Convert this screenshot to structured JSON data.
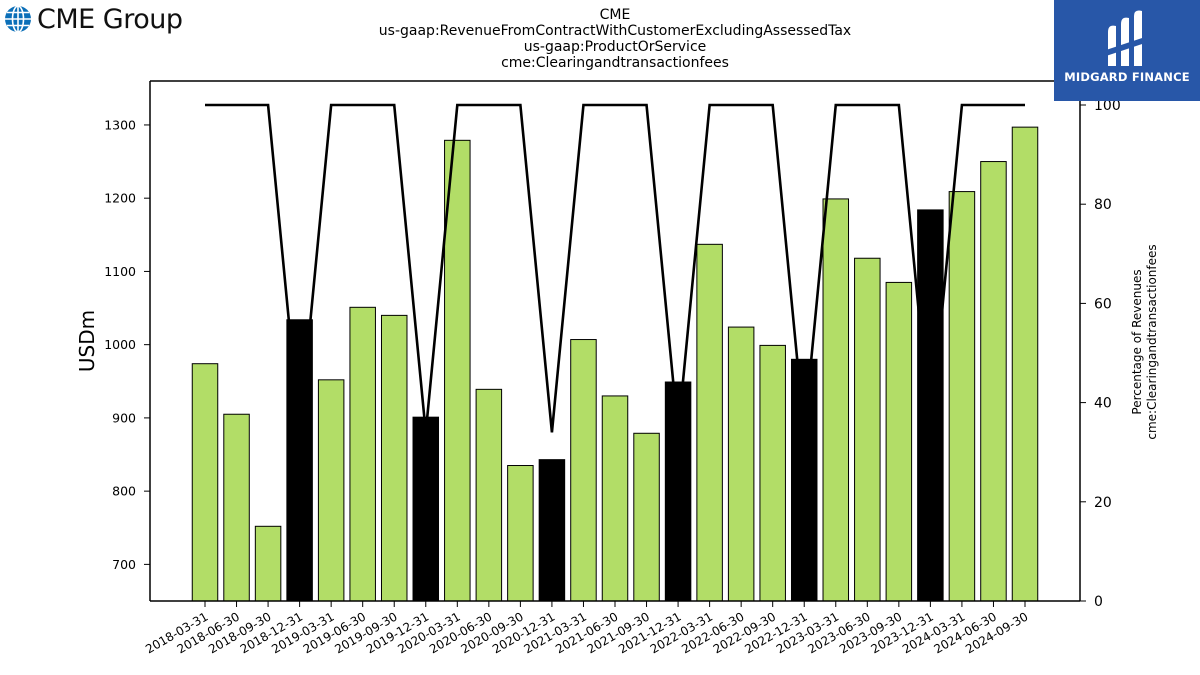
{
  "header": {
    "title_lines": [
      "CME",
      "us-gaap:RevenueFromContractWithCustomerExcludingAssessedTax",
      "us-gaap:ProductOrService",
      "cme:Clearingandtransactionfees"
    ],
    "left_logo_text": "CME Group",
    "right_logo_text": "MIDGARD FINANCE"
  },
  "colors": {
    "bar_normal": "#b2dd67",
    "bar_q4": "#000000",
    "line": "#000000",
    "logo_blue": "#2857a8",
    "globe_blue": "#0b6fb8"
  },
  "chart_data": {
    "type": "bar",
    "ylabel": "USDm",
    "y2label_lines": [
      "Percentage of Revenues",
      "cme:Clearingandtransactionfees"
    ],
    "ylim": [
      650,
      1360
    ],
    "y_ticks": [
      700,
      800,
      900,
      1000,
      1100,
      1200,
      1300
    ],
    "y2lim": [
      0,
      100
    ],
    "y2_ticks": [
      0,
      20,
      40,
      60,
      80,
      100
    ],
    "categories": [
      "2018-03-31",
      "2018-06-30",
      "2018-09-30",
      "2018-12-31",
      "2019-03-31",
      "2019-06-30",
      "2019-09-30",
      "2019-12-31",
      "2020-03-31",
      "2020-06-30",
      "2020-09-30",
      "2020-12-31",
      "2021-03-31",
      "2021-06-30",
      "2021-09-30",
      "2021-12-31",
      "2022-03-31",
      "2022-06-30",
      "2022-09-30",
      "2022-12-31",
      "2023-03-31",
      "2023-06-30",
      "2023-09-30",
      "2023-12-31",
      "2024-03-31",
      "2024-06-30",
      "2024-09-30"
    ],
    "series": [
      {
        "values": [
          974,
          905,
          752,
          1034,
          952,
          1051,
          1040,
          901,
          1279,
          939,
          835,
          843,
          1007,
          930,
          879,
          949,
          1137,
          1024,
          999,
          980,
          1199,
          1118,
          1085,
          1184,
          1209,
          1250,
          1297
        ],
        "highlight_q4": true
      },
      {
        "axis": "right",
        "type": "line",
        "values": [
          100,
          100,
          100,
          34,
          100,
          100,
          100,
          34,
          100,
          100,
          100,
          34,
          100,
          100,
          100,
          34,
          100,
          100,
          100,
          34,
          100,
          100,
          100,
          34,
          100,
          100,
          100
        ]
      }
    ]
  }
}
